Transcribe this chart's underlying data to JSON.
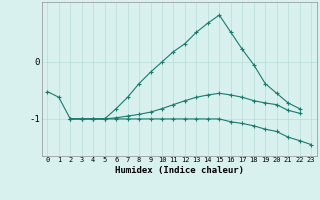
{
  "xlabel": "Humidex (Indice chaleur)",
  "bg_color": "#d8f0ee",
  "grid_color": "#b8dcd8",
  "line_color": "#1a7a6e",
  "x_values": [
    0,
    1,
    2,
    3,
    4,
    5,
    6,
    7,
    8,
    9,
    10,
    11,
    12,
    13,
    14,
    15,
    16,
    17,
    18,
    19,
    20,
    21,
    22,
    23
  ],
  "series1": [
    -0.52,
    -0.62,
    -1.0,
    -1.0,
    -1.0,
    -1.0,
    -0.82,
    -0.62,
    -0.38,
    -0.18,
    0.0,
    0.18,
    0.32,
    0.52,
    0.68,
    0.82,
    0.52,
    0.22,
    -0.05,
    -0.38,
    -0.55,
    -0.72,
    -0.82,
    null
  ],
  "series2": [
    null,
    null,
    -1.0,
    -1.0,
    -1.0,
    -1.0,
    -1.0,
    -1.0,
    -1.0,
    -1.0,
    -1.0,
    -1.0,
    -1.0,
    -1.0,
    -1.0,
    -1.0,
    -1.05,
    -1.08,
    -1.12,
    -1.18,
    -1.22,
    -1.32,
    -1.38,
    -1.45
  ],
  "series3": [
    null,
    null,
    -1.0,
    -1.0,
    -1.0,
    -1.0,
    -0.98,
    -0.95,
    -0.92,
    -0.88,
    -0.82,
    -0.75,
    -0.68,
    -0.62,
    -0.58,
    -0.55,
    -0.58,
    -0.62,
    -0.68,
    -0.72,
    -0.75,
    -0.85,
    -0.9,
    null
  ],
  "ylim": [
    -1.65,
    1.05
  ],
  "yticks": [
    -1,
    0
  ],
  "xlim": [
    -0.5,
    23.5
  ]
}
